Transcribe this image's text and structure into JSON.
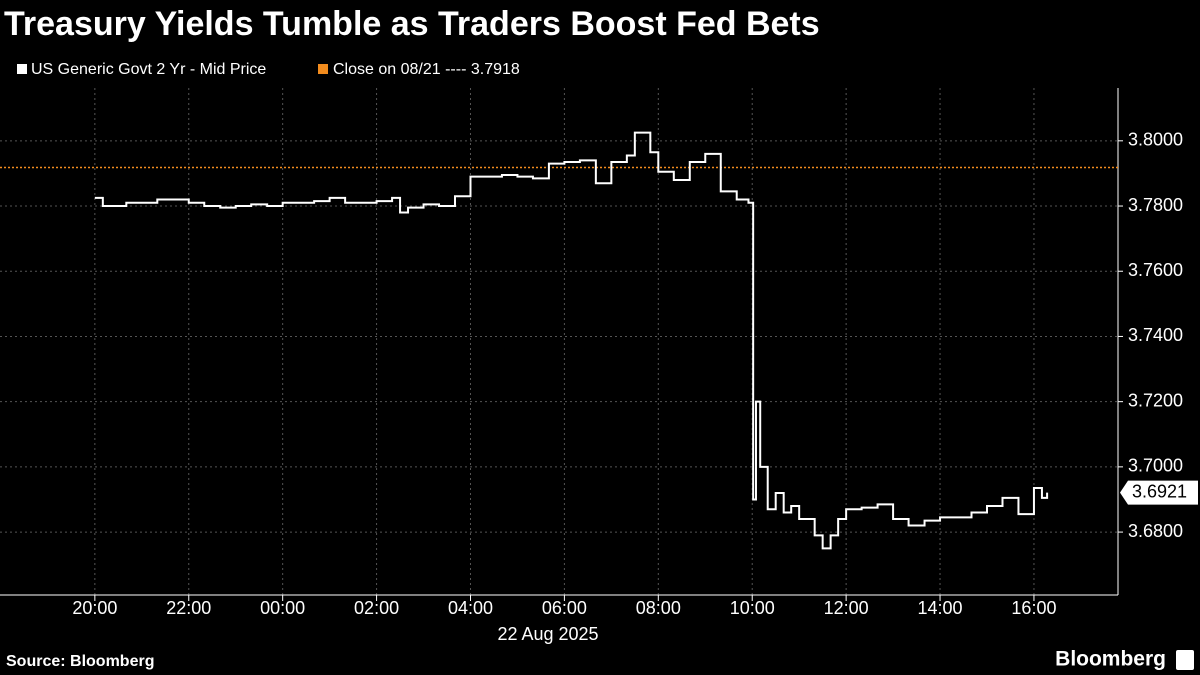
{
  "chart_data": {
    "type": "line",
    "title": "Treasury Yields Tumble as Traders Boost Fed Bets",
    "xlabel": "22 Aug 2025",
    "source": "Source: Bloomberg",
    "brand": "Bloomberg",
    "x": [
      -4,
      -3.83,
      -3.67,
      -3.33,
      -3,
      -2.67,
      -2.33,
      -2,
      -1.67,
      -1.33,
      -1,
      -0.67,
      -0.33,
      0,
      0.33,
      0.67,
      1,
      1.33,
      1.67,
      2,
      2.33,
      2.5,
      2.67,
      3,
      3.33,
      3.67,
      4,
      4.33,
      4.67,
      5,
      5.33,
      5.67,
      6,
      6.33,
      6.67,
      7,
      7.33,
      7.5,
      7.83,
      8,
      8.33,
      8.67,
      9,
      9.33,
      9.67,
      9.92,
      10,
      10.02,
      10.08,
      10.17,
      10.33,
      10.5,
      10.67,
      10.83,
      11,
      11.17,
      11.33,
      11.5,
      11.67,
      11.83,
      12,
      12.33,
      12.67,
      13,
      13.33,
      13.67,
      14,
      14.33,
      14.67,
      15,
      15.33,
      15.67,
      16,
      16.17,
      16.28
    ],
    "series": [
      {
        "name": "US Generic Govt 2 Yr - Mid Price",
        "color": "#ffffff",
        "values": [
          3.7825,
          3.78,
          3.78,
          3.781,
          3.781,
          3.782,
          3.782,
          3.781,
          3.78,
          3.7795,
          3.78,
          3.7805,
          3.78,
          3.781,
          3.781,
          3.7815,
          3.7825,
          3.781,
          3.781,
          3.7815,
          3.7825,
          3.778,
          3.7795,
          3.7805,
          3.78,
          3.783,
          3.789,
          3.789,
          3.7895,
          3.789,
          3.7885,
          3.793,
          3.7935,
          3.794,
          3.787,
          3.7935,
          3.7955,
          3.8025,
          3.7965,
          3.7905,
          3.788,
          3.7935,
          3.796,
          3.7845,
          3.782,
          3.781,
          3.781,
          3.69,
          3.72,
          3.7,
          3.687,
          3.692,
          3.686,
          3.688,
          3.684,
          3.684,
          3.679,
          3.675,
          3.679,
          3.684,
          3.687,
          3.6875,
          3.6885,
          3.684,
          3.682,
          3.6835,
          3.6845,
          3.6845,
          3.686,
          3.688,
          3.6905,
          3.6855,
          3.6935,
          3.6905,
          3.6921
        ]
      }
    ],
    "reference_line": {
      "name": "Close on 08/21 ----",
      "value": 3.7918,
      "color": "#f28c1e"
    },
    "xlim": [
      -6.02,
      17.79
    ],
    "xticks": [
      {
        "value": -4,
        "label": "20:00"
      },
      {
        "value": -2,
        "label": "22:00"
      },
      {
        "value": 0,
        "label": "00:00"
      },
      {
        "value": 2,
        "label": "02:00"
      },
      {
        "value": 4,
        "label": "04:00"
      },
      {
        "value": 6,
        "label": "06:00"
      },
      {
        "value": 8,
        "label": "08:00"
      },
      {
        "value": 10,
        "label": "10:00"
      },
      {
        "value": 12,
        "label": "12:00"
      },
      {
        "value": 14,
        "label": "14:00"
      },
      {
        "value": 16,
        "label": "16:00"
      }
    ],
    "ylim": [
      3.6607,
      3.8162
    ],
    "yticks": [
      {
        "value": 3.68,
        "label": "3.6800"
      },
      {
        "value": 3.7,
        "label": "3.7000"
      },
      {
        "value": 3.72,
        "label": "3.7200"
      },
      {
        "value": 3.74,
        "label": "3.7400"
      },
      {
        "value": 3.76,
        "label": "3.7600"
      },
      {
        "value": 3.78,
        "label": "3.7800"
      },
      {
        "value": 3.8,
        "label": "3.8000"
      }
    ],
    "grid": true
  }
}
